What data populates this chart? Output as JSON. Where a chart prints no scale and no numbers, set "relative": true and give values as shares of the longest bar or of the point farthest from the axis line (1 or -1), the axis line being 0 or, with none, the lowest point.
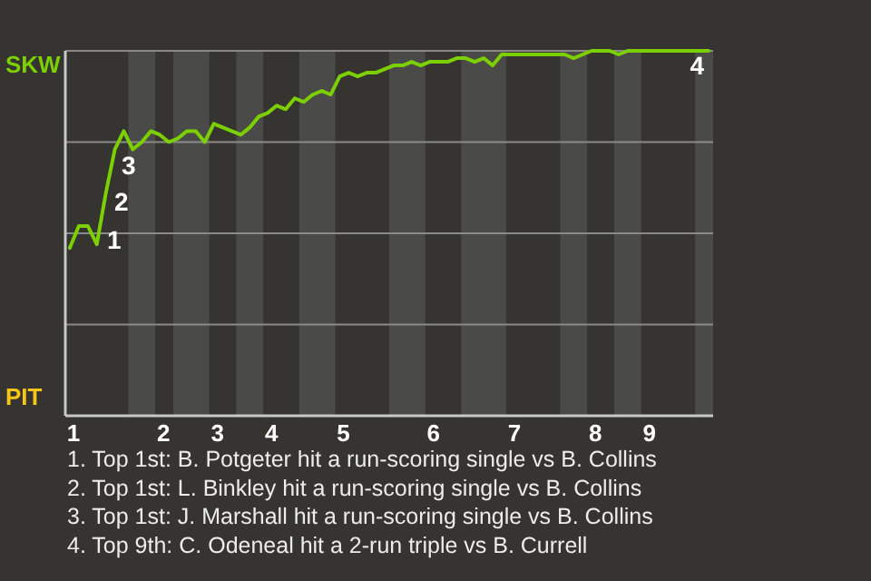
{
  "chart_data": {
    "type": "line",
    "relative": true,
    "categories": [
      "1",
      null,
      null,
      null,
      null,
      null,
      null,
      null,
      null,
      null,
      "2",
      null,
      null,
      null,
      null,
      null,
      "3",
      null,
      null,
      null,
      null,
      null,
      "4",
      null,
      null,
      null,
      null,
      null,
      null,
      null,
      "5",
      null,
      null,
      null,
      null,
      null,
      null,
      null,
      null,
      null,
      "6",
      null,
      null,
      null,
      null,
      null,
      null,
      null,
      null,
      "7",
      null,
      null,
      null,
      null,
      null,
      null,
      null,
      null,
      "8",
      null,
      null,
      null,
      null,
      null,
      "9",
      null,
      null,
      null,
      null,
      null,
      null,
      null
    ],
    "series": [
      {
        "color": "#7ccf00",
        "values": [
          0.46,
          0.52,
          0.52,
          0.47,
          0.61,
          0.73,
          0.78,
          0.73,
          0.75,
          0.78,
          0.77,
          0.75,
          0.76,
          0.78,
          0.78,
          0.75,
          0.8,
          0.79,
          0.78,
          0.77,
          0.79,
          0.82,
          0.83,
          0.85,
          0.84,
          0.87,
          0.86,
          0.88,
          0.89,
          0.88,
          0.93,
          0.94,
          0.93,
          0.94,
          0.94,
          0.95,
          0.96,
          0.96,
          0.97,
          0.96,
          0.97,
          0.97,
          0.97,
          0.98,
          0.98,
          0.97,
          0.98,
          0.96,
          0.99,
          0.99,
          0.99,
          0.99,
          0.99,
          0.99,
          0.99,
          0.99,
          0.98,
          0.99,
          1,
          1,
          1,
          0.99,
          1,
          1,
          1,
          1,
          1,
          1,
          1,
          1,
          1,
          1
        ]
      }
    ],
    "annotations": [
      "SKW",
      "PIT",
      "1",
      "2",
      "3",
      "4",
      "1. Top 1st: B. Potgeter hit a run-scoring single vs B. Collins",
      "2. Top 1st: L. Binkley hit a run-scoring single vs B. Collins",
      "3. Top 1st: J. Marshall hit a run-scoring single vs B. Collins",
      "4. Top 9th: C. Odeneal hit a 2-run triple vs B. Currell"
    ]
  }
}
